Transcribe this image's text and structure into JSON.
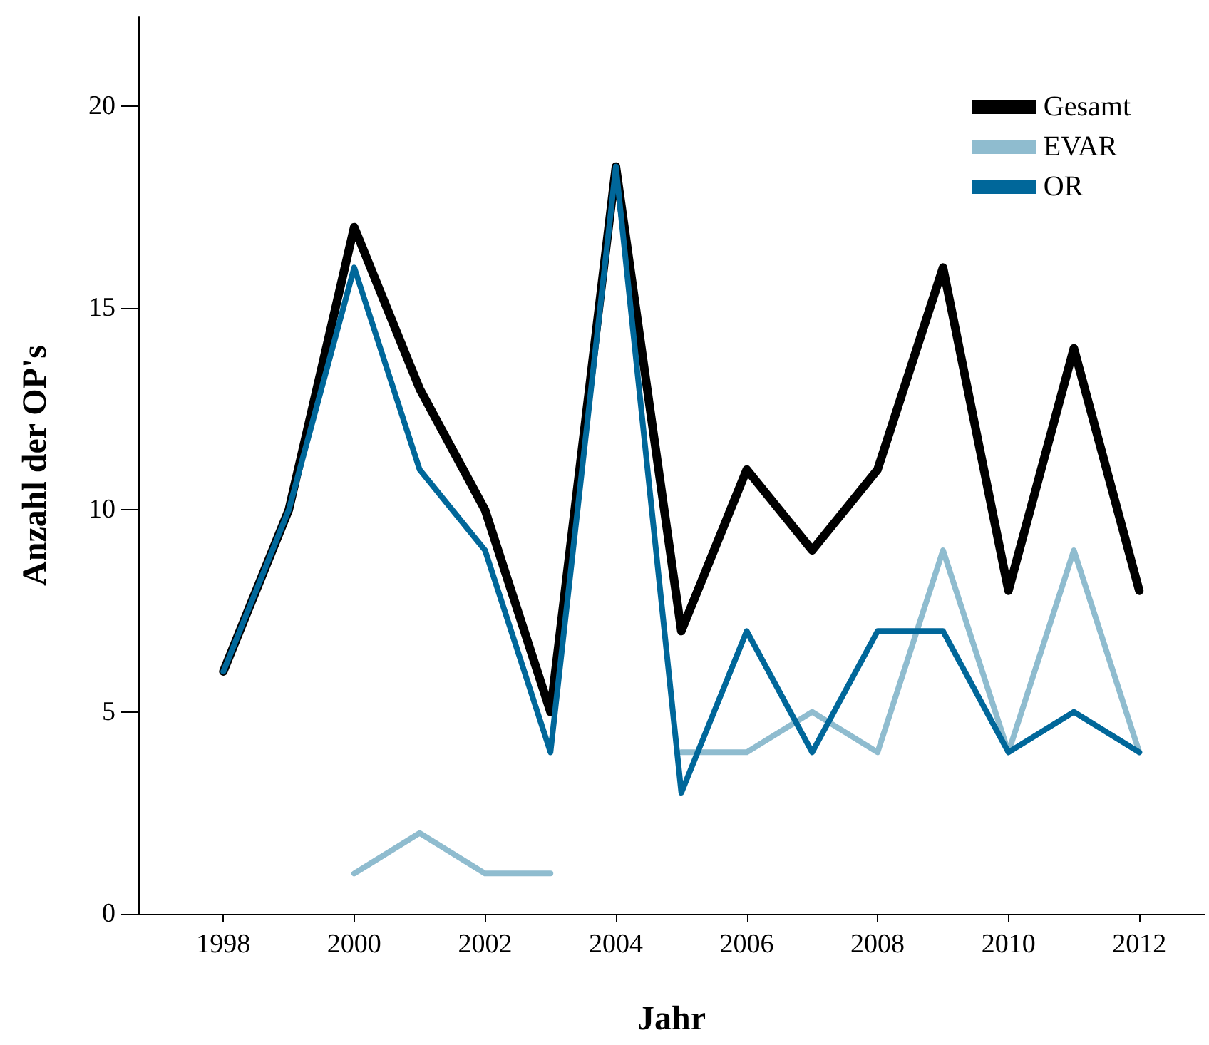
{
  "chart_data": {
    "type": "line",
    "xlabel": "Jahr",
    "ylabel": "Anzahl der OP's",
    "x": [
      1998,
      1999,
      2000,
      2001,
      2002,
      2003,
      2004,
      2005,
      2006,
      2007,
      2008,
      2009,
      2010,
      2011,
      2012
    ],
    "series": [
      {
        "name": "Gesamt",
        "color": "#000000",
        "values": [
          6,
          10,
          17,
          13,
          10,
          5,
          18.5,
          7,
          11,
          9,
          11,
          16,
          8,
          14,
          8
        ]
      },
      {
        "name": "EVAR",
        "color": "#8fbccf",
        "values": [
          null,
          null,
          1,
          2,
          1,
          1,
          null,
          4,
          4,
          5,
          4,
          9,
          4,
          9,
          4
        ]
      },
      {
        "name": "OR",
        "color": "#00679a",
        "values": [
          6,
          10,
          16,
          11,
          9,
          4,
          18.5,
          3,
          7,
          4,
          7,
          7,
          4,
          5,
          4
        ]
      }
    ],
    "xlim": [
      1996.7,
      2013
    ],
    "xticks": [
      1998,
      2000,
      2002,
      2004,
      2006,
      2008,
      2010,
      2012
    ],
    "ylim": [
      0,
      22.2
    ],
    "yticks": [
      0,
      5,
      10,
      15,
      20
    ],
    "grid": false,
    "legend": "top right",
    "marker": "none",
    "line_style": "solid"
  }
}
